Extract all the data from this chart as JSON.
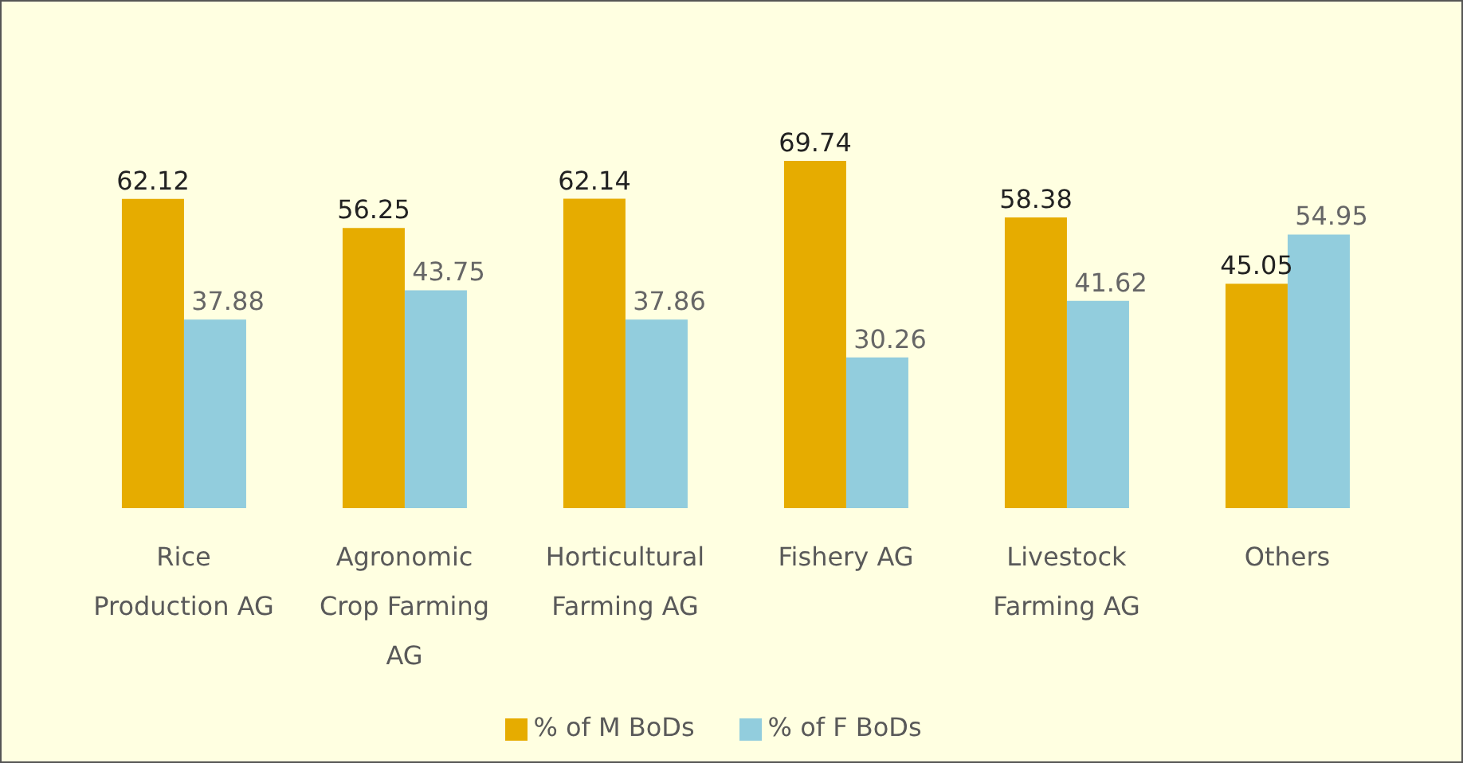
{
  "chart_data": {
    "type": "bar",
    "categories": [
      "Rice Production AG",
      "Agronomic Crop Farming AG",
      "Horticultural Farming AG",
      "Fishery AG",
      "Livestock Farming AG",
      "Others"
    ],
    "series": [
      {
        "name": "% of M BoDs",
        "color": "#e6ac00",
        "values": [
          62.12,
          56.25,
          62.14,
          69.74,
          58.38,
          45.05
        ]
      },
      {
        "name": "% of F BoDs",
        "color": "#92cddd",
        "values": [
          37.88,
          43.75,
          37.86,
          30.26,
          41.62,
          54.95
        ]
      }
    ],
    "data_labels": true,
    "legend": "bottom",
    "grid": false
  }
}
